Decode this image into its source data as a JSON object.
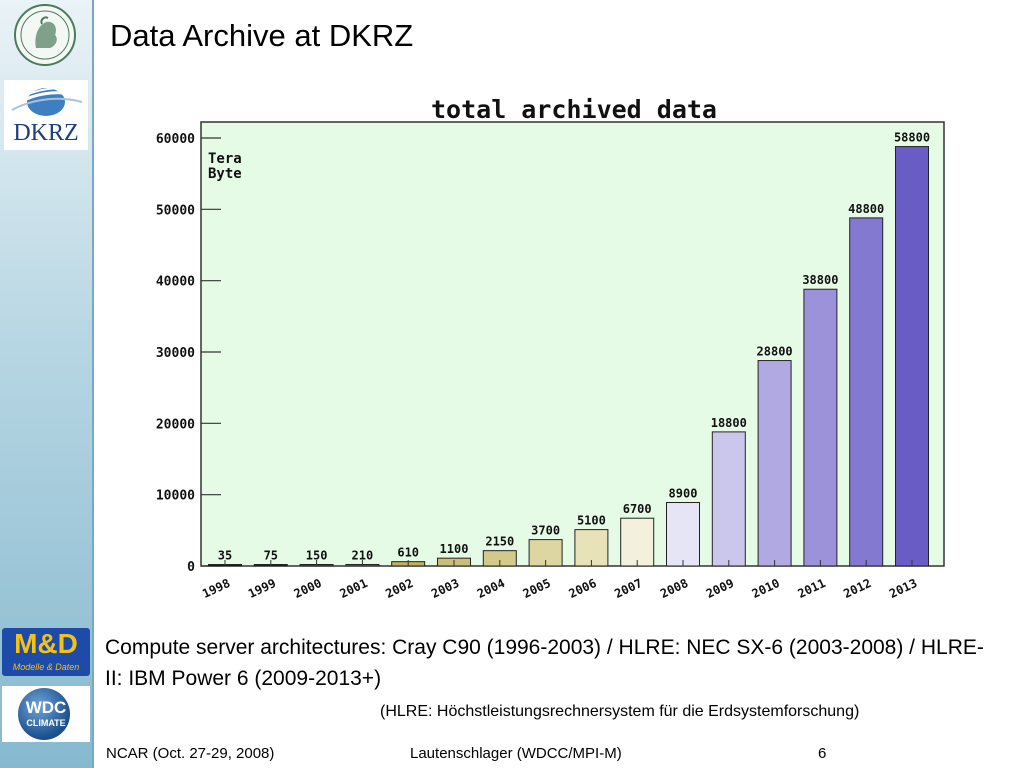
{
  "slide": {
    "title": "Data Archive at DKRZ",
    "caption": "Compute server architectures: Cray C90 (1996-2003) / HLRE: NEC SX-6 (2003-2008) / HLRE-II: IBM Power 6 (2009-2013+)",
    "note": "(HLRE: Höchstleistungsrechnersystem für die Erdsystemforschung)"
  },
  "logos": {
    "dkrz_text": "DKRZ",
    "md_text": "M&D",
    "md_sub": "Modelle & Daten",
    "wdc_text": "WDC",
    "wdc_sub": "CLIMATE",
    "icons": [
      "mpg-seal-icon",
      "dkrz-logo-icon",
      "md-logo-icon",
      "wdc-climate-logo-icon"
    ]
  },
  "footer": {
    "left": "NCAR (Oct. 27-29, 2008)",
    "center": "Lautenschlager (WDCC/MPI-M)",
    "page": "6"
  },
  "chart_data": {
    "type": "bar",
    "title": "total archived data",
    "unit_label": [
      "Tera",
      "Byte"
    ],
    "categories": [
      "1998",
      "1999",
      "2000",
      "2001",
      "2002",
      "2003",
      "2004",
      "2005",
      "2006",
      "2007",
      "2008",
      "2009",
      "2010",
      "2011",
      "2012",
      "2013"
    ],
    "values": [
      35,
      75,
      150,
      210,
      610,
      1100,
      2150,
      3700,
      5100,
      6700,
      8900,
      18800,
      28800,
      38800,
      48800,
      58800
    ],
    "data_labels": [
      "35",
      "75",
      "150",
      "210",
      "610",
      "1100",
      "2150",
      "3700",
      "5100",
      "6700",
      "8900",
      "18800",
      "28800",
      "38800",
      "48800",
      "58800"
    ],
    "yticks": [
      0,
      10000,
      20000,
      30000,
      40000,
      50000,
      60000
    ],
    "ylim": [
      0,
      60000
    ],
    "grid": false,
    "colors": {
      "background": "#e6fbe6",
      "bars": [
        "#1a1a10",
        "#222218",
        "#5a5830",
        "#7a7640",
        "#bdb060",
        "#c9bd78",
        "#d3c98a",
        "#ddd5a2",
        "#e8e2b8",
        "#f3f0dc",
        "#e6e5f5",
        "#cbc6ec",
        "#b0a9e2",
        "#9b92da",
        "#8479d0",
        "#6a5cc5"
      ]
    }
  }
}
